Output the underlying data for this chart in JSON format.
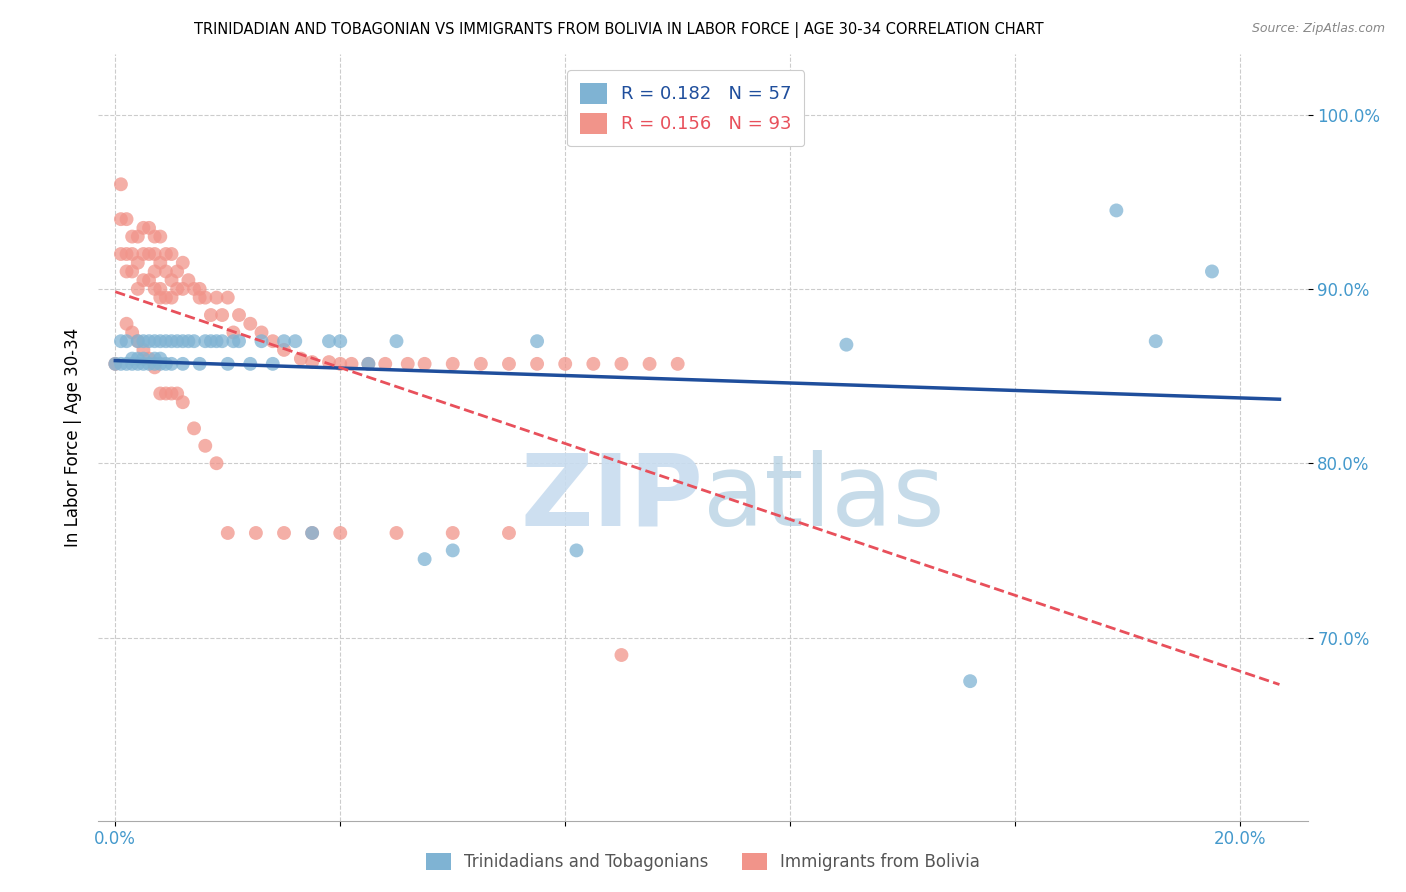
{
  "title": "TRINIDADIAN AND TOBAGONIAN VS IMMIGRANTS FROM BOLIVIA IN LABOR FORCE | AGE 30-34 CORRELATION CHART",
  "source": "Source: ZipAtlas.com",
  "ylabel": "In Labor Force | Age 30-34",
  "x_min": -0.003,
  "x_max": 0.212,
  "y_min": 0.595,
  "y_max": 1.035,
  "y_ticks": [
    0.7,
    0.8,
    0.9,
    1.0
  ],
  "y_tick_labels": [
    "70.0%",
    "80.0%",
    "90.0%",
    "100.0%"
  ],
  "x_ticks": [
    0.0,
    0.04,
    0.08,
    0.12,
    0.16,
    0.2
  ],
  "x_tick_labels": [
    "0.0%",
    "",
    "",
    "",
    "",
    "20.0%"
  ],
  "blue_color": "#7FB3D3",
  "pink_color": "#F1948A",
  "blue_line_color": "#1F4E9C",
  "pink_line_color": "#E8505B",
  "legend_blue_r": "0.182",
  "legend_blue_n": "57",
  "legend_pink_r": "0.156",
  "legend_pink_n": "93",
  "blue_points_x": [
    0.0,
    0.001,
    0.001,
    0.002,
    0.002,
    0.003,
    0.003,
    0.004,
    0.004,
    0.004,
    0.005,
    0.005,
    0.005,
    0.006,
    0.006,
    0.007,
    0.007,
    0.007,
    0.008,
    0.008,
    0.008,
    0.009,
    0.009,
    0.01,
    0.01,
    0.011,
    0.012,
    0.012,
    0.013,
    0.014,
    0.015,
    0.016,
    0.017,
    0.018,
    0.019,
    0.02,
    0.021,
    0.022,
    0.024,
    0.026,
    0.028,
    0.03,
    0.032,
    0.035,
    0.038,
    0.04,
    0.045,
    0.05,
    0.055,
    0.06,
    0.075,
    0.082,
    0.13,
    0.152,
    0.178,
    0.185,
    0.195
  ],
  "blue_points_y": [
    0.857,
    0.857,
    0.87,
    0.87,
    0.857,
    0.86,
    0.857,
    0.87,
    0.857,
    0.86,
    0.87,
    0.857,
    0.86,
    0.87,
    0.857,
    0.87,
    0.86,
    0.857,
    0.87,
    0.86,
    0.857,
    0.87,
    0.857,
    0.87,
    0.857,
    0.87,
    0.87,
    0.857,
    0.87,
    0.87,
    0.857,
    0.87,
    0.87,
    0.87,
    0.87,
    0.857,
    0.87,
    0.87,
    0.857,
    0.87,
    0.857,
    0.87,
    0.87,
    0.76,
    0.87,
    0.87,
    0.857,
    0.87,
    0.745,
    0.75,
    0.87,
    0.75,
    0.868,
    0.675,
    0.945,
    0.87,
    0.91
  ],
  "pink_points_x": [
    0.0,
    0.001,
    0.001,
    0.001,
    0.002,
    0.002,
    0.002,
    0.003,
    0.003,
    0.003,
    0.004,
    0.004,
    0.004,
    0.005,
    0.005,
    0.005,
    0.006,
    0.006,
    0.006,
    0.007,
    0.007,
    0.007,
    0.007,
    0.008,
    0.008,
    0.008,
    0.008,
    0.009,
    0.009,
    0.009,
    0.01,
    0.01,
    0.01,
    0.011,
    0.011,
    0.012,
    0.012,
    0.013,
    0.014,
    0.015,
    0.015,
    0.016,
    0.017,
    0.018,
    0.019,
    0.02,
    0.021,
    0.022,
    0.024,
    0.026,
    0.028,
    0.03,
    0.033,
    0.035,
    0.038,
    0.04,
    0.042,
    0.045,
    0.048,
    0.052,
    0.055,
    0.06,
    0.065,
    0.07,
    0.075,
    0.08,
    0.085,
    0.09,
    0.095,
    0.1,
    0.002,
    0.003,
    0.004,
    0.005,
    0.006,
    0.007,
    0.008,
    0.009,
    0.01,
    0.011,
    0.012,
    0.014,
    0.016,
    0.018,
    0.02,
    0.025,
    0.03,
    0.035,
    0.04,
    0.05,
    0.06,
    0.07,
    0.09
  ],
  "pink_points_y": [
    0.857,
    0.96,
    0.94,
    0.92,
    0.94,
    0.92,
    0.91,
    0.93,
    0.92,
    0.91,
    0.93,
    0.915,
    0.9,
    0.935,
    0.92,
    0.905,
    0.935,
    0.92,
    0.905,
    0.93,
    0.92,
    0.91,
    0.9,
    0.93,
    0.915,
    0.9,
    0.895,
    0.92,
    0.91,
    0.895,
    0.92,
    0.905,
    0.895,
    0.91,
    0.9,
    0.915,
    0.9,
    0.905,
    0.9,
    0.895,
    0.9,
    0.895,
    0.885,
    0.895,
    0.885,
    0.895,
    0.875,
    0.885,
    0.88,
    0.875,
    0.87,
    0.865,
    0.86,
    0.858,
    0.858,
    0.857,
    0.857,
    0.857,
    0.857,
    0.857,
    0.857,
    0.857,
    0.857,
    0.857,
    0.857,
    0.857,
    0.857,
    0.857,
    0.857,
    0.857,
    0.88,
    0.875,
    0.87,
    0.865,
    0.86,
    0.855,
    0.84,
    0.84,
    0.84,
    0.84,
    0.835,
    0.82,
    0.81,
    0.8,
    0.76,
    0.76,
    0.76,
    0.76,
    0.76,
    0.76,
    0.76,
    0.76,
    0.69
  ]
}
